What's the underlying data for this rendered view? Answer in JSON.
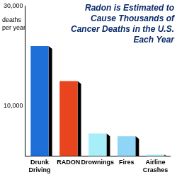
{
  "chart_data": {
    "type": "bar",
    "title": "Radon is Estimated to Cause Thousands of Cancer Deaths in the U.S. Each Year",
    "y_label": "deaths per year",
    "categories": [
      "Drunk Driving",
      "RADON",
      "Drownings",
      "Fires",
      "Airline Crashes"
    ],
    "values": [
      22000,
      15000,
      4500,
      4000,
      300
    ],
    "colors": [
      "#1f6fd8",
      "#e8441e",
      "#a8eef8",
      "#8fd6f6",
      "#b4f2f8"
    ],
    "ylim": [
      0,
      30000
    ],
    "yticks": [
      {
        "value": 10000,
        "label": "10,000"
      },
      {
        "value": 30000,
        "label": "30,000"
      }
    ],
    "grid": false
  }
}
